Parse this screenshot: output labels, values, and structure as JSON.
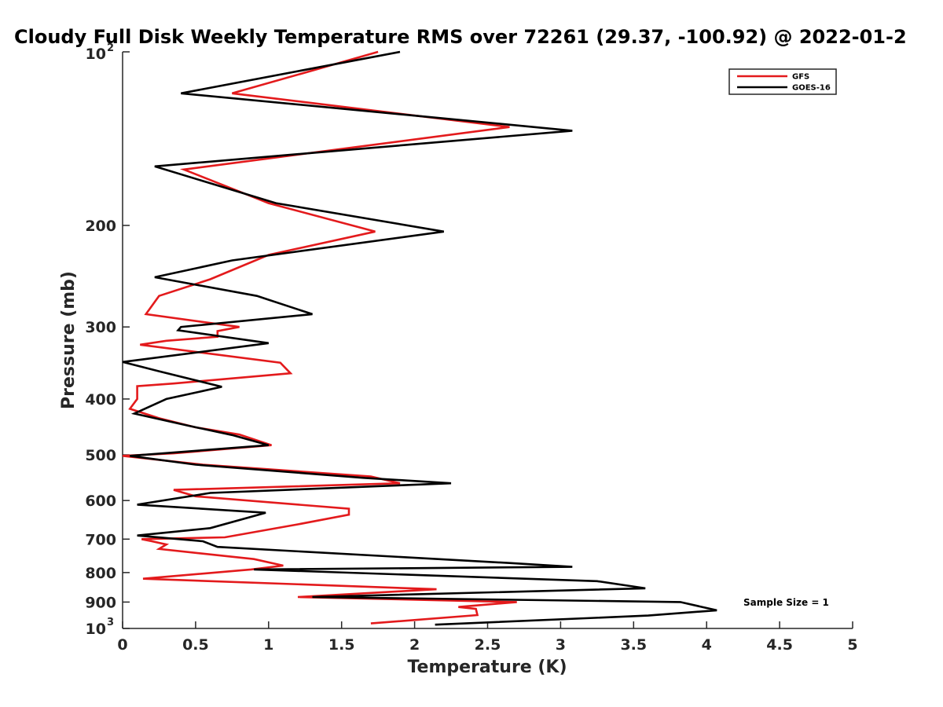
{
  "chart_data": {
    "type": "line",
    "title": "Cloudy Full Disk Weekly Temperature RMS over 72261 (29.37, -100.92) @ 2022-01-2",
    "xlabel": "Temperature (K)",
    "ylabel": "Pressure (mb)",
    "xlim": [
      0,
      5
    ],
    "ylim": [
      1000,
      100
    ],
    "y_scale": "log",
    "grid": false,
    "legend_position": "top-right",
    "x_ticks": [
      "0",
      "0.5",
      "1",
      "1.5",
      "2",
      "2.5",
      "3",
      "3.5",
      "4",
      "4.5",
      "5"
    ],
    "y_ticks": [
      {
        "value": 100,
        "base": "10",
        "exp": "2"
      },
      {
        "value": 200,
        "label": "200"
      },
      {
        "value": 300,
        "label": "300"
      },
      {
        "value": 400,
        "label": "400"
      },
      {
        "value": 500,
        "label": "500"
      },
      {
        "value": 600,
        "label": "600"
      },
      {
        "value": 700,
        "label": "700"
      },
      {
        "value": 800,
        "label": "800"
      },
      {
        "value": 900,
        "label": "900"
      },
      {
        "value": 1000,
        "base": "10",
        "exp": "3"
      }
    ],
    "series": [
      {
        "name": "GFS",
        "color": "#e31a1c",
        "points": [
          [
            1.75,
            100
          ],
          [
            0.75,
            118
          ],
          [
            2.65,
            135
          ],
          [
            0.42,
            160
          ],
          [
            1.0,
            183
          ],
          [
            1.73,
            205
          ],
          [
            1.0,
            225
          ],
          [
            0.6,
            248
          ],
          [
            0.25,
            265
          ],
          [
            0.16,
            285
          ],
          [
            0.8,
            300
          ],
          [
            0.65,
            305
          ],
          [
            0.65,
            312
          ],
          [
            0.3,
            317
          ],
          [
            0.12,
            322
          ],
          [
            1.08,
            346
          ],
          [
            1.15,
            361
          ],
          [
            0.35,
            376
          ],
          [
            0.1,
            380
          ],
          [
            0.1,
            400
          ],
          [
            0.05,
            416
          ],
          [
            0.25,
            432
          ],
          [
            0.5,
            448
          ],
          [
            0.8,
            461
          ],
          [
            1.02,
            481
          ],
          [
            0.35,
            497
          ],
          [
            0.0,
            502
          ],
          [
            0.55,
            520
          ],
          [
            1.7,
            545
          ],
          [
            1.9,
            560
          ],
          [
            0.35,
            575
          ],
          [
            0.5,
            590
          ],
          [
            1.55,
            620
          ],
          [
            1.55,
            635
          ],
          [
            1.2,
            660
          ],
          [
            0.7,
            695
          ],
          [
            0.13,
            700
          ],
          [
            0.2,
            706
          ],
          [
            0.3,
            715
          ],
          [
            0.25,
            728
          ],
          [
            0.9,
            758
          ],
          [
            1.1,
            778
          ],
          [
            0.88,
            790
          ],
          [
            0.14,
            820
          ],
          [
            2.15,
            855
          ],
          [
            1.2,
            882
          ],
          [
            2.7,
            900
          ],
          [
            2.3,
            918
          ],
          [
            2.42,
            925
          ],
          [
            2.43,
            948
          ],
          [
            1.7,
            980
          ]
        ]
      },
      {
        "name": "GOES-16",
        "color": "#000000",
        "points": [
          [
            1.9,
            100
          ],
          [
            0.4,
            118
          ],
          [
            3.08,
            137
          ],
          [
            0.22,
            158
          ],
          [
            1.05,
            183
          ],
          [
            2.2,
            205
          ],
          [
            0.75,
            230
          ],
          [
            0.22,
            246
          ],
          [
            0.92,
            265
          ],
          [
            1.3,
            285
          ],
          [
            0.4,
            300
          ],
          [
            0.38,
            304
          ],
          [
            1.0,
            320
          ],
          [
            0.0,
            345
          ],
          [
            0.25,
            358
          ],
          [
            0.68,
            381
          ],
          [
            0.3,
            400
          ],
          [
            0.08,
            424
          ],
          [
            0.45,
            445
          ],
          [
            0.75,
            462
          ],
          [
            1.0,
            481
          ],
          [
            0.05,
            502
          ],
          [
            0.5,
            520
          ],
          [
            1.65,
            548
          ],
          [
            2.25,
            560
          ],
          [
            0.6,
            582
          ],
          [
            0.1,
            610
          ],
          [
            0.98,
            630
          ],
          [
            0.6,
            670
          ],
          [
            0.1,
            690
          ],
          [
            0.55,
            706
          ],
          [
            0.65,
            722
          ],
          [
            2.65,
            770
          ],
          [
            3.08,
            782
          ],
          [
            0.9,
            790
          ],
          [
            3.25,
            828
          ],
          [
            3.58,
            852
          ],
          [
            1.3,
            882
          ],
          [
            3.82,
            900
          ],
          [
            4.07,
            930
          ],
          [
            3.6,
            950
          ],
          [
            2.14,
            985
          ]
        ]
      }
    ],
    "annotation": "Sample Size = 1"
  }
}
